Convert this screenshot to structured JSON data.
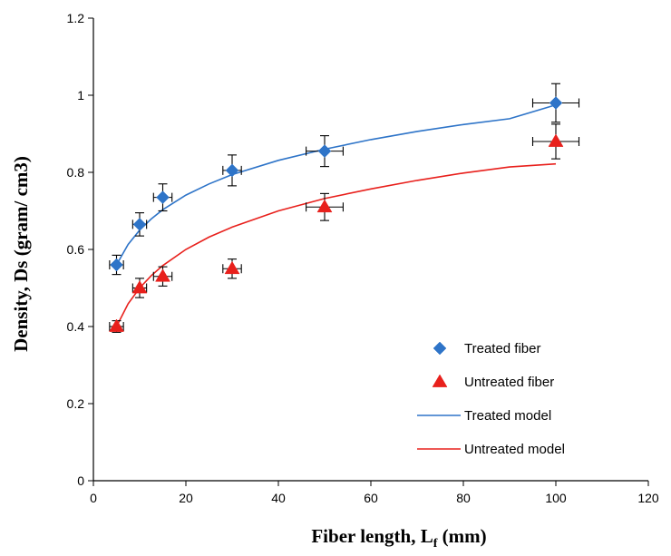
{
  "chart_data": {
    "type": "scatter",
    "xlabel_main": "Fiber length, L",
    "xlabel_sub": "f",
    "xlabel_unit": " (mm)",
    "ylabel": "Density, Ds (gram/ cm3)",
    "xlim": [
      0,
      120
    ],
    "ylim": [
      0,
      1.2
    ],
    "xticks": [
      0,
      20,
      40,
      60,
      80,
      100,
      120
    ],
    "yticks": [
      0,
      0.2,
      0.4,
      0.6,
      0.8,
      1,
      1.2
    ],
    "xtick_labels": [
      "0",
      "20",
      "40",
      "60",
      "80",
      "100",
      "120"
    ],
    "ytick_labels": [
      "0",
      "0.2",
      "0.4",
      "0.6",
      "0.8",
      "1",
      "1.2"
    ],
    "grid": false,
    "legend_position": "lower-right",
    "series": [
      {
        "name": "Treated fiber",
        "kind": "points",
        "marker": "diamond",
        "color": "#2E74C8",
        "x": [
          5,
          10,
          15,
          30,
          50,
          100
        ],
        "y": [
          0.56,
          0.665,
          0.735,
          0.805,
          0.855,
          0.98
        ],
        "yerr": [
          0.025,
          0.03,
          0.035,
          0.04,
          0.04,
          0.05
        ],
        "xerr": [
          1.5,
          1.5,
          2,
          2,
          4,
          5
        ]
      },
      {
        "name": "Untreated fiber",
        "kind": "points",
        "marker": "triangle",
        "color": "#E8201C",
        "x": [
          5,
          10,
          15,
          30,
          50,
          100
        ],
        "y": [
          0.4,
          0.5,
          0.53,
          0.55,
          0.71,
          0.88
        ],
        "yerr": [
          0.015,
          0.025,
          0.025,
          0.025,
          0.035,
          0.045
        ],
        "xerr": [
          1.5,
          1.5,
          2,
          2,
          4,
          5
        ]
      },
      {
        "name": "Treated model",
        "kind": "line",
        "color": "#2E74C8",
        "x": [
          5,
          7.5,
          10,
          12.5,
          15,
          20,
          25,
          30,
          40,
          50,
          60,
          70,
          80,
          90,
          100
        ],
        "y": [
          0.56,
          0.613,
          0.65,
          0.679,
          0.703,
          0.741,
          0.77,
          0.794,
          0.831,
          0.86,
          0.885,
          0.906,
          0.924,
          0.939,
          0.975
        ]
      },
      {
        "name": "Untreated model",
        "kind": "line",
        "color": "#E8201C",
        "x": [
          5,
          7.5,
          10,
          12.5,
          15,
          20,
          25,
          30,
          40,
          50,
          60,
          70,
          80,
          90,
          100
        ],
        "y": [
          0.4,
          0.459,
          0.5,
          0.532,
          0.558,
          0.6,
          0.632,
          0.658,
          0.7,
          0.732,
          0.757,
          0.779,
          0.798,
          0.814,
          0.822
        ]
      }
    ]
  }
}
